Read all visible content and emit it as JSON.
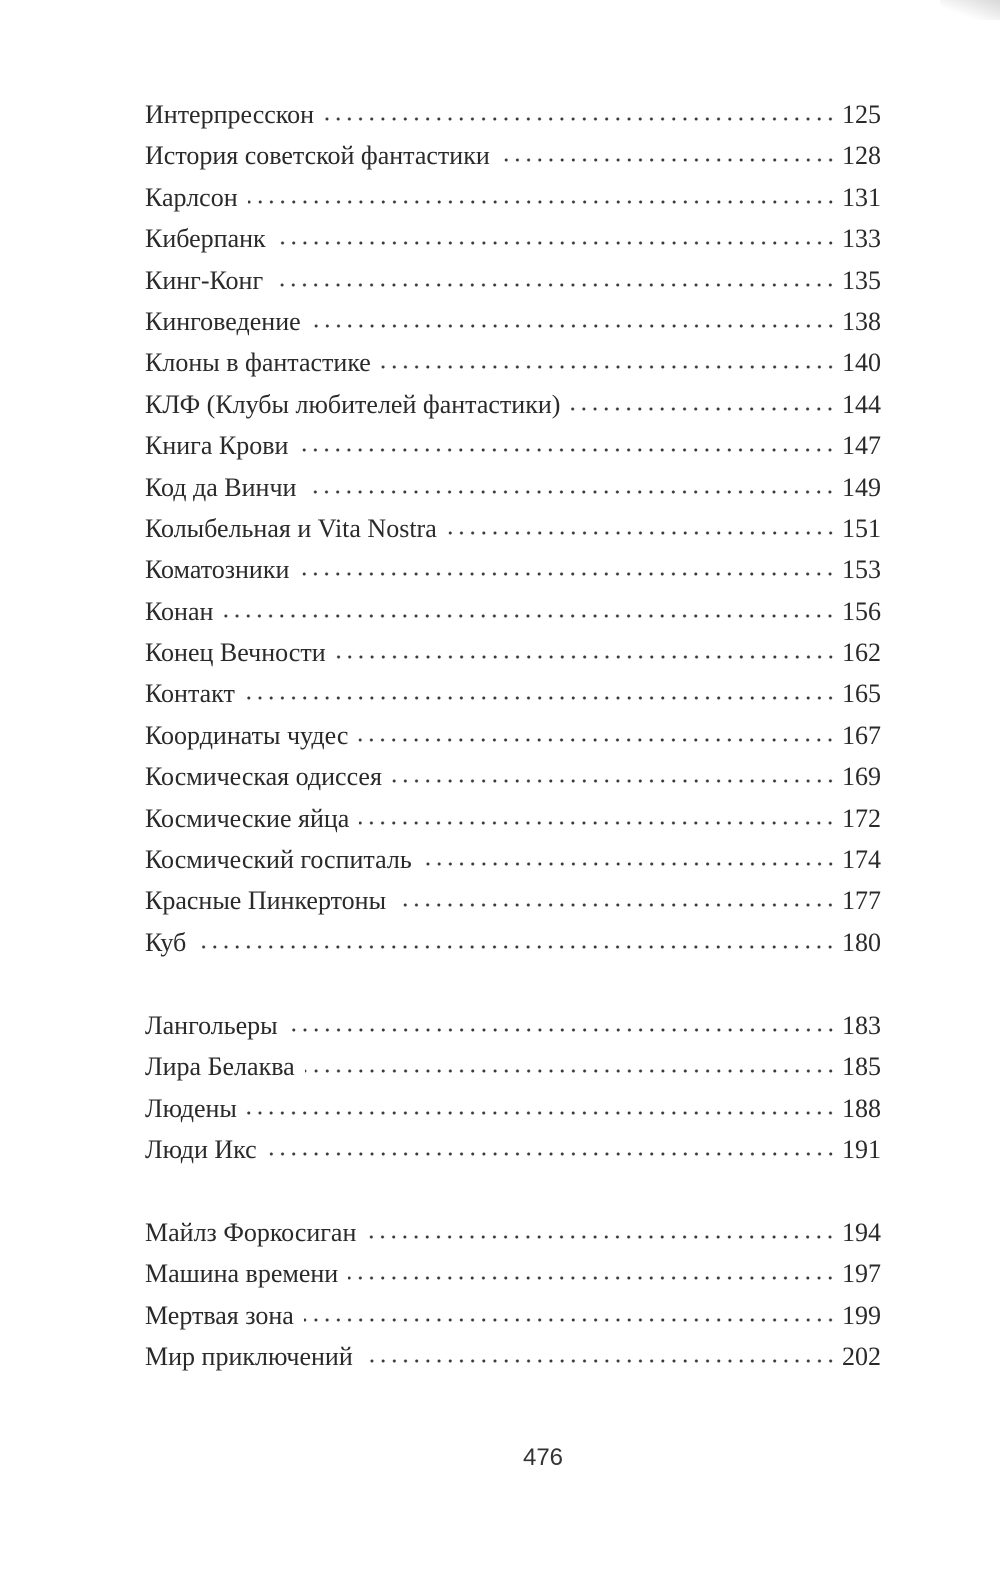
{
  "toc": {
    "groups": [
      {
        "entries": [
          {
            "title": "Интерпресскон",
            "page": "125"
          },
          {
            "title": "История советской фантастики",
            "page": "128"
          },
          {
            "title": "Карлсон",
            "page": "131"
          },
          {
            "title": "Киберпанк",
            "page": "133"
          },
          {
            "title": "Кинг-Конг",
            "page": "135"
          },
          {
            "title": "Кинговедение",
            "page": "138"
          },
          {
            "title": "Клоны в фантастике",
            "page": "140"
          },
          {
            "title": "КЛФ (Клубы любителей фантастики)",
            "page": "144"
          },
          {
            "title": "Книга Крови",
            "page": "147"
          },
          {
            "title": "Код да Винчи",
            "page": "149"
          },
          {
            "title": "Колыбельная и Vita Nostra",
            "page": "151"
          },
          {
            "title": "Коматозники",
            "page": "153"
          },
          {
            "title": "Конан",
            "page": "156"
          },
          {
            "title": "Конец Вечности",
            "page": "162"
          },
          {
            "title": "Контакт",
            "page": "165"
          },
          {
            "title": "Координаты чудес",
            "page": "167"
          },
          {
            "title": "Космическая одиссея",
            "page": "169"
          },
          {
            "title": "Космические яйца",
            "page": "172"
          },
          {
            "title": "Космический госпиталь",
            "page": "174"
          },
          {
            "title": "Красные Пинкертоны",
            "page": "177"
          },
          {
            "title": "Куб",
            "page": "180"
          }
        ]
      },
      {
        "entries": [
          {
            "title": "Лангольеры",
            "page": "183"
          },
          {
            "title": "Лира Белаква",
            "page": "185"
          },
          {
            "title": "Людены",
            "page": "188"
          },
          {
            "title": "Люди Икс",
            "page": "191"
          }
        ]
      },
      {
        "entries": [
          {
            "title": "Майлз Форкосиган",
            "page": "194"
          },
          {
            "title": "Машина времени",
            "page": "197"
          },
          {
            "title": "Мертвая зона",
            "page": "199"
          },
          {
            "title": "Мир приключений",
            "page": "202"
          }
        ]
      }
    ]
  },
  "folio": "476"
}
